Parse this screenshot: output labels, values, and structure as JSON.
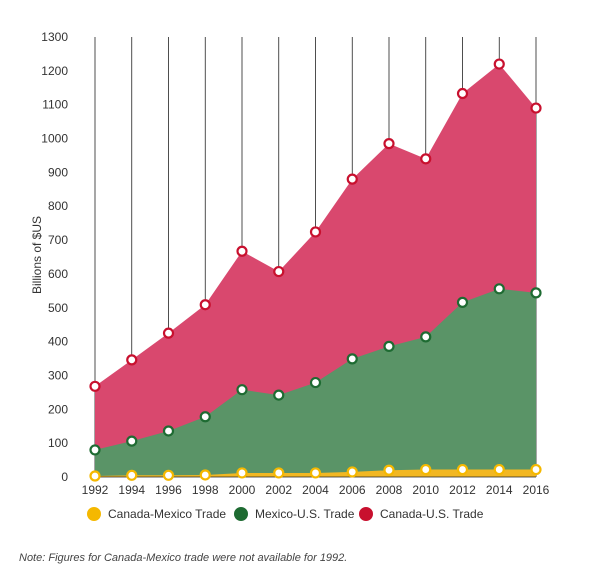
{
  "chart_data": {
    "type": "area",
    "title": "",
    "xlabel": "",
    "ylabel": "Billions of $US",
    "ylim": [
      0,
      1300
    ],
    "yticks": [
      0,
      100,
      200,
      300,
      400,
      500,
      600,
      700,
      800,
      900,
      1000,
      1100,
      1200,
      1300
    ],
    "x": [
      1992,
      1994,
      1996,
      1998,
      2000,
      2002,
      2004,
      2006,
      2008,
      2010,
      2012,
      2014,
      2016
    ],
    "stacked": false,
    "grid": "vertical",
    "legend_position": "bottom",
    "series": [
      {
        "name": "Canada-U.S. Trade",
        "color": "#d9486e",
        "marker_color": "#c8102e",
        "values": [
          268,
          346,
          425,
          509,
          667,
          607,
          724,
          880,
          985,
          940,
          1133,
          1220,
          1090
        ]
      },
      {
        "name": "Mexico-U.S. Trade",
        "color": "#5a9467",
        "marker_color": "#1e6b32",
        "values": [
          80,
          106,
          136,
          178,
          258,
          242,
          279,
          349,
          386,
          414,
          516,
          556,
          544
        ]
      },
      {
        "name": "Canada-Mexico Trade",
        "color": "#f2b722",
        "marker_color": "#f5b800",
        "values": [
          3,
          5,
          5,
          6,
          12,
          12,
          12,
          15,
          20,
          22,
          22,
          22,
          22
        ]
      }
    ]
  },
  "note": "Note: Figures for Canada-Mexico trade were not available for 1992."
}
